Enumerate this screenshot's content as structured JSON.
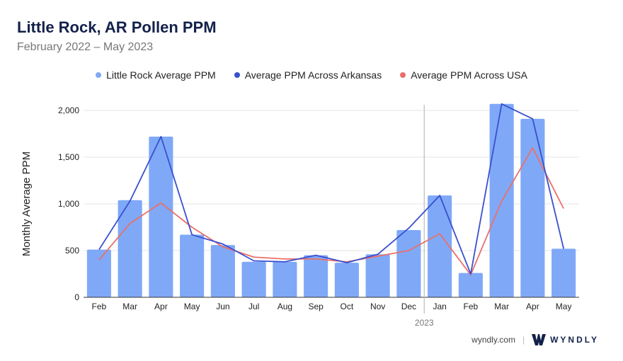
{
  "header": {
    "title": "Little Rock, AR Pollen PPM",
    "subtitle": "February 2022 – May 2023"
  },
  "colors": {
    "bar": "#7fa9f7",
    "arkansas": "#3a4fcf",
    "usa": "#eb6f68",
    "grid": "#e6e6e6",
    "divider": "#bbbbbb",
    "brand": "#13214a"
  },
  "footer": {
    "site": "wyndly.com",
    "separator": "|",
    "brand": "WYNDLY",
    "logo_icon": "wyndly-w-logo-icon"
  },
  "chart_data": {
    "type": "bar",
    "categories": [
      "Feb",
      "Mar",
      "Apr",
      "May",
      "Jun",
      "Jul",
      "Aug",
      "Sep",
      "Oct",
      "Nov",
      "Dec",
      "Jan",
      "Feb",
      "Mar",
      "Apr",
      "May"
    ],
    "year_marker": {
      "before_index": 11,
      "label": "2023"
    },
    "series": [
      {
        "name": "Little Rock Average PPM",
        "kind": "bar",
        "values": [
          510,
          1040,
          1720,
          670,
          560,
          380,
          380,
          450,
          370,
          460,
          720,
          1090,
          260,
          2070,
          1910,
          520
        ]
      },
      {
        "name": "Average PPM Across Arkansas",
        "kind": "line",
        "values": [
          510,
          1030,
          1720,
          670,
          570,
          390,
          380,
          450,
          370,
          460,
          740,
          1090,
          250,
          2070,
          1910,
          520
        ]
      },
      {
        "name": "Average PPM Across USA",
        "kind": "line",
        "values": [
          400,
          790,
          1010,
          750,
          540,
          430,
          410,
          410,
          380,
          440,
          500,
          680,
          240,
          1030,
          1600,
          950
        ]
      }
    ],
    "title": "Little Rock, AR Pollen PPM",
    "subtitle": "February 2022 – May 2023",
    "xlabel": "",
    "ylabel": "Monthly Average PPM",
    "ylim": [
      0,
      2000
    ],
    "yticks": [
      0,
      500,
      1000,
      1500,
      2000
    ],
    "ytick_labels": [
      "0",
      "500",
      "1,000",
      "1,500",
      "2,000"
    ],
    "grid": true,
    "legend_position": "top-center"
  }
}
